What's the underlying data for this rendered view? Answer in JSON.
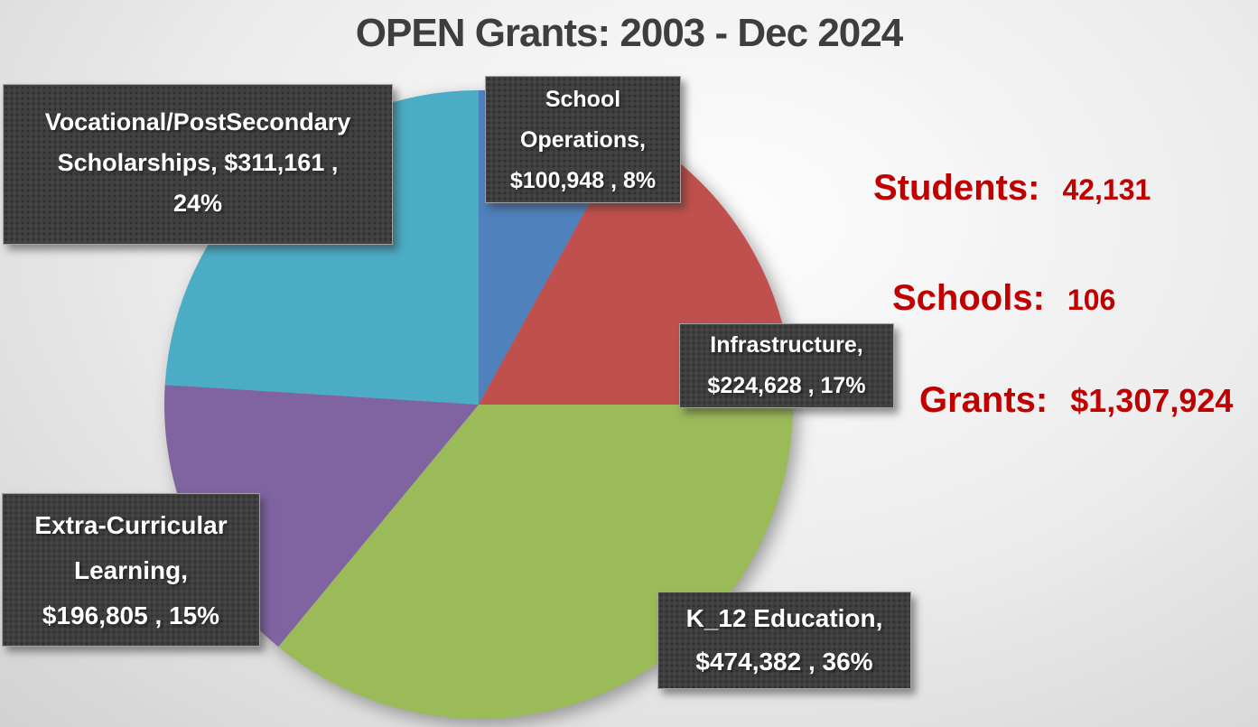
{
  "title": "OPEN Grants: 2003 - Dec 2024",
  "chart_data": {
    "type": "pie",
    "title": "OPEN Grants: 2003 - Dec 2024",
    "direction": "clockwise",
    "start_angle_deg": 0,
    "total_label": "$1,307,924",
    "slices": [
      {
        "id": "school-operations",
        "label": "School Operations",
        "value": 100948,
        "amount_text": "$100,948",
        "pct": 8,
        "color": "#4f81bd",
        "callout_lines": [
          "School",
          "Operations,",
          "$100,948 , 8%"
        ]
      },
      {
        "id": "infrastructure",
        "label": "Infrastructure",
        "value": 224628,
        "amount_text": "$224,628",
        "pct": 17,
        "color": "#c0504d",
        "callout_lines": [
          "Infrastructure,",
          "$224,628 , 17%"
        ]
      },
      {
        "id": "k12-education",
        "label": "K_12 Education",
        "value": 474382,
        "amount_text": "$474,382",
        "pct": 36,
        "color": "#9bbb59",
        "callout_lines": [
          "K_12 Education,",
          "$474,382 , 36%"
        ]
      },
      {
        "id": "extra-curricular-learning",
        "label": "Extra-Curricular Learning",
        "value": 196805,
        "amount_text": "$196,805",
        "pct": 15,
        "color": "#8064a2",
        "callout_lines": [
          "Extra-Curricular",
          "Learning,",
          "$196,805 , 15%"
        ]
      },
      {
        "id": "vocational-postsecondary-scholarships",
        "label": "Vocational/PostSecondary Scholarships",
        "value": 311161,
        "amount_text": "$311,161",
        "pct": 24,
        "color": "#4bacc6",
        "callout_lines": [
          "Vocational/PostSecondary",
          "Scholarships,  $311,161 ,",
          "24%"
        ]
      }
    ]
  },
  "stats": [
    {
      "id": "students",
      "label": "Students:",
      "value": "42,131"
    },
    {
      "id": "schools",
      "label": "Schools:",
      "value": "106"
    },
    {
      "id": "grants",
      "label": "Grants:",
      "value": "$1,307,924"
    }
  ],
  "colors": {
    "title_text": "#3e3e3e",
    "stat_text": "#c00000",
    "callout_bg": "#3f3f3f",
    "callout_text": "#ffffff"
  }
}
